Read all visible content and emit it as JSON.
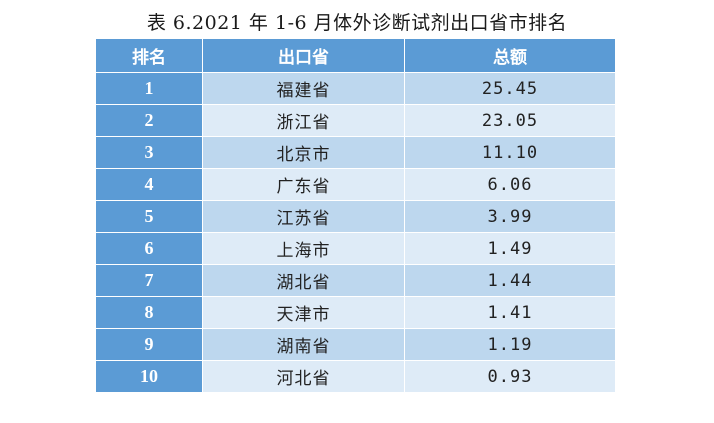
{
  "title": "表 6.2021 年 1-6 月体外诊断试剂出口省市排名",
  "table": {
    "headers": [
      "排名",
      "出口省",
      "总额"
    ],
    "rows": [
      {
        "rank": "1",
        "province": "福建省",
        "total": "25.45"
      },
      {
        "rank": "2",
        "province": "浙江省",
        "total": "23.05"
      },
      {
        "rank": "3",
        "province": "北京市",
        "total": "11.10"
      },
      {
        "rank": "4",
        "province": "广东省",
        "total": "6.06"
      },
      {
        "rank": "5",
        "province": "江苏省",
        "total": "3.99"
      },
      {
        "rank": "6",
        "province": "上海市",
        "total": "1.49"
      },
      {
        "rank": "7",
        "province": "湖北省",
        "total": "1.44"
      },
      {
        "rank": "8",
        "province": "天津市",
        "total": "1.41"
      },
      {
        "rank": "9",
        "province": "湖南省",
        "total": "1.19"
      },
      {
        "rank": "10",
        "province": "河北省",
        "total": "0.93"
      }
    ]
  },
  "colors": {
    "header_bg": "#5b9bd5",
    "row_odd_bg": "#bdd7ee",
    "row_even_bg": "#deebf7"
  }
}
